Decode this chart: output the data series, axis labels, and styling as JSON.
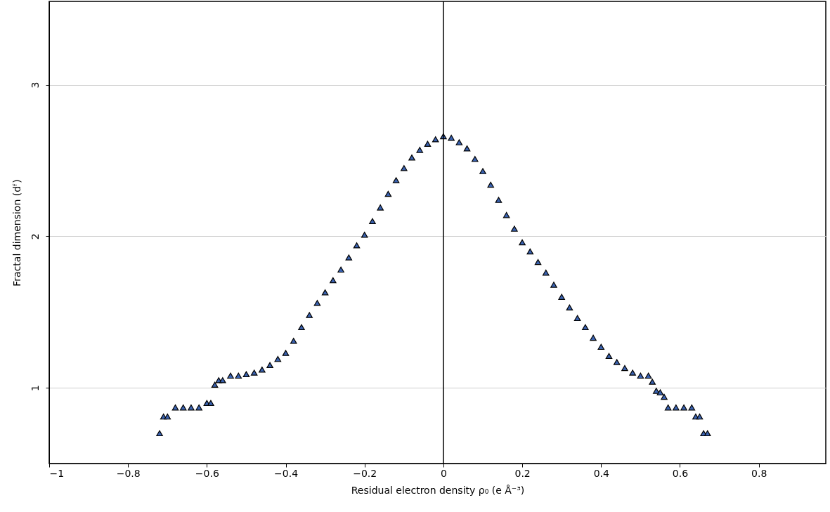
{
  "chart_data": {
    "type": "scatter",
    "xlabel": "Residual electron density ρ₀ (e Å⁻³)",
    "ylabel": "Fractal dimension (dᶠ)",
    "x": [
      -0.72,
      -0.71,
      -0.7,
      -0.68,
      -0.66,
      -0.64,
      -0.62,
      -0.6,
      -0.59,
      -0.58,
      -0.57,
      -0.56,
      -0.54,
      -0.52,
      -0.5,
      -0.48,
      -0.46,
      -0.44,
      -0.42,
      -0.4,
      -0.38,
      -0.36,
      -0.34,
      -0.32,
      -0.3,
      -0.28,
      -0.26,
      -0.24,
      -0.22,
      -0.2,
      -0.18,
      -0.16,
      -0.14,
      -0.12,
      -0.1,
      -0.08,
      -0.06,
      -0.04,
      -0.02,
      0.0,
      0.02,
      0.04,
      0.06,
      0.08,
      0.1,
      0.12,
      0.14,
      0.16,
      0.18,
      0.2,
      0.22,
      0.24,
      0.26,
      0.28,
      0.3,
      0.32,
      0.34,
      0.36,
      0.38,
      0.4,
      0.42,
      0.44,
      0.46,
      0.48,
      0.5,
      0.52,
      0.53,
      0.54,
      0.55,
      0.56,
      0.57,
      0.59,
      0.61,
      0.63,
      0.64,
      0.65,
      0.66,
      0.67
    ],
    "series": [
      {
        "color": "#3a62b0",
        "values": [
          0.7,
          0.81,
          0.81,
          0.87,
          0.87,
          0.87,
          0.87,
          0.9,
          0.9,
          1.02,
          1.05,
          1.05,
          1.08,
          1.08,
          1.09,
          1.1,
          1.12,
          1.15,
          1.19,
          1.23,
          1.31,
          1.4,
          1.48,
          1.56,
          1.63,
          1.71,
          1.78,
          1.86,
          1.94,
          2.01,
          2.1,
          2.19,
          2.28,
          2.37,
          2.45,
          2.52,
          2.57,
          2.61,
          2.64,
          2.66,
          2.65,
          2.62,
          2.58,
          2.51,
          2.43,
          2.34,
          2.24,
          2.14,
          2.05,
          1.96,
          1.9,
          1.83,
          1.76,
          1.68,
          1.6,
          1.53,
          1.46,
          1.4,
          1.33,
          1.27,
          1.21,
          1.17,
          1.13,
          1.1,
          1.08,
          1.08,
          1.04,
          0.98,
          0.97,
          0.94,
          0.87,
          0.87,
          0.87,
          0.87,
          0.81,
          0.81,
          0.7,
          0.7
        ]
      }
    ],
    "xlim": [
      -1,
      0.97
    ],
    "xticks": [
      -1,
      -0.8,
      -0.6,
      -0.4,
      -0.2,
      0,
      0.2,
      0.4,
      0.6,
      0.8
    ],
    "ylim": [
      0.5,
      3.55
    ],
    "yticks": [
      1,
      2,
      3
    ],
    "grid": "y",
    "marker": "triangle",
    "ref_lines": [
      {
        "axis": "x",
        "value": 0,
        "color": "#000000"
      }
    ]
  }
}
